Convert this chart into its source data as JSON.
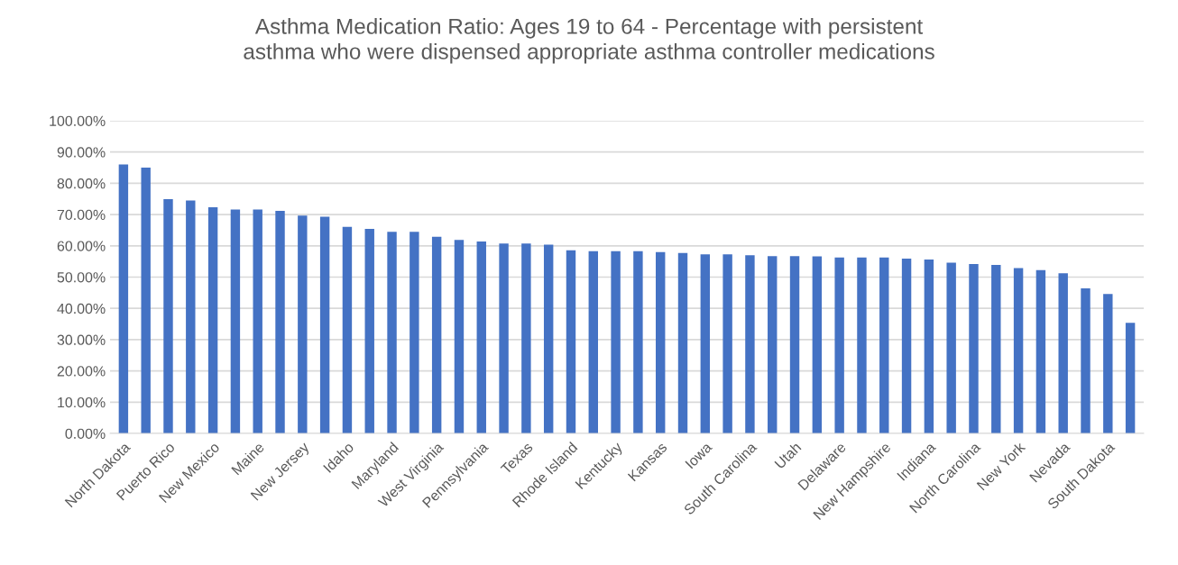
{
  "chart_data": {
    "type": "bar",
    "title": "Asthma Medication Ratio: Ages 19 to 64 - Percentage with persistent\nasthma who were dispensed appropriate asthma controller medications",
    "categories": [
      "North Dakota",
      null,
      "Puerto Rico",
      null,
      "New Mexico",
      null,
      "Maine",
      null,
      "New Jersey",
      null,
      "Idaho",
      null,
      "Maryland",
      null,
      "West Virginia",
      null,
      "Pennsylvania",
      null,
      "Texas",
      null,
      "Rhode Island",
      null,
      "Kentucky",
      null,
      "Kansas",
      null,
      "Iowa",
      null,
      "South Carolina",
      null,
      "Utah",
      null,
      "Delaware",
      null,
      "New Hampshire",
      null,
      "Indiana",
      null,
      "North Carolina",
      null,
      "New York",
      null,
      "Nevada",
      null,
      "South Dakota",
      null
    ],
    "values": [
      86.0,
      85.0,
      74.9,
      74.5,
      72.3,
      71.6,
      71.6,
      71.2,
      69.7,
      69.3,
      66.1,
      65.4,
      64.5,
      64.5,
      62.9,
      61.9,
      61.4,
      60.7,
      60.7,
      60.4,
      58.6,
      58.3,
      58.3,
      58.3,
      58.0,
      57.7,
      57.3,
      57.3,
      57.0,
      56.7,
      56.7,
      56.6,
      56.3,
      56.3,
      56.3,
      55.9,
      55.6,
      54.6,
      54.2,
      53.9,
      52.9,
      52.2,
      51.2,
      46.4,
      44.6,
      35.4
    ],
    "color": "#4472c4",
    "ylim": [
      0,
      100
    ],
    "yticks": [
      {
        "value": 0,
        "label": "0.00%"
      },
      {
        "value": 10,
        "label": "10.00%"
      },
      {
        "value": 20,
        "label": "20.00%"
      },
      {
        "value": 30,
        "label": "30.00%"
      },
      {
        "value": 40,
        "label": "40.00%"
      },
      {
        "value": 50,
        "label": "50.00%"
      },
      {
        "value": 60,
        "label": "60.00%"
      },
      {
        "value": 70,
        "label": "70.00%"
      },
      {
        "value": 80,
        "label": "80.00%"
      },
      {
        "value": 90,
        "label": "90.00%"
      },
      {
        "value": 100,
        "label": "100.00%"
      }
    ],
    "grid": "y",
    "legend": false
  }
}
